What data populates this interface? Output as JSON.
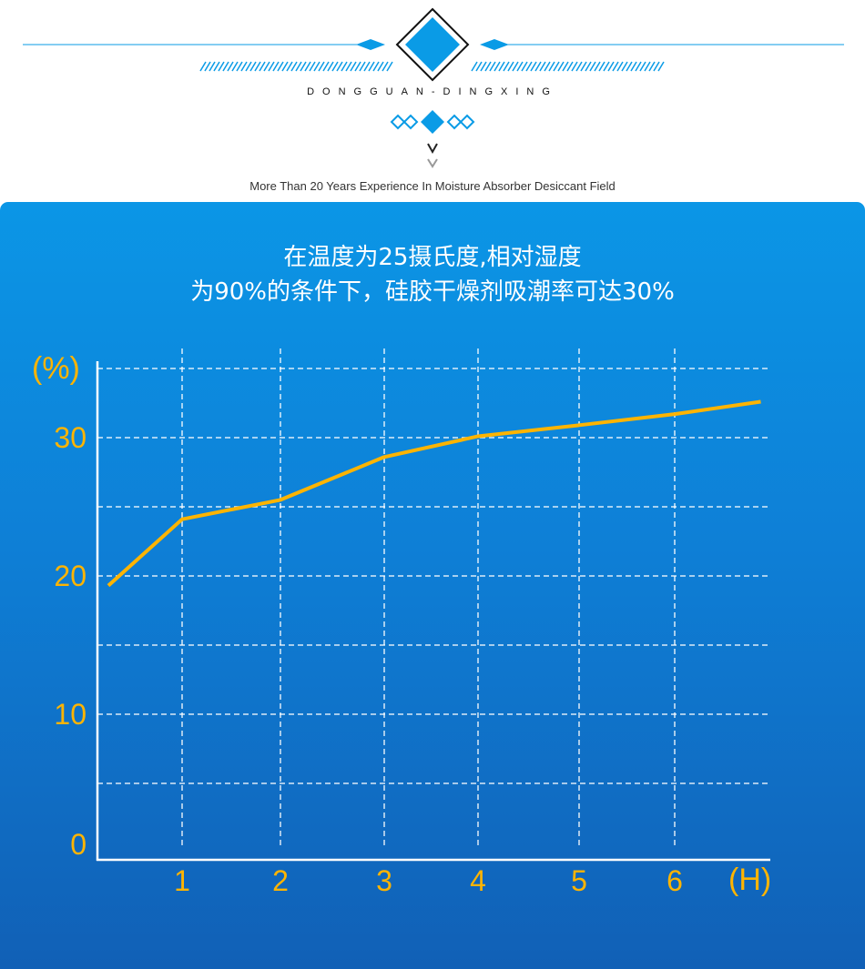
{
  "header": {
    "brand": "DONGGUAN-DINGXING",
    "tagline": "More Than 20 Years Experience In Moisture Absorber Desiccant Field",
    "accent": "#0a9be6"
  },
  "chart_data": {
    "type": "line",
    "title": [
      "在温度为25摄氏度,相对湿度",
      "为90%的条件下，硅胶干燥剂吸潮率可达30%"
    ],
    "xlabel": "(H)",
    "ylabel": "(%)",
    "xticks": [
      "1",
      "2",
      "3",
      "4",
      "5",
      "6"
    ],
    "yticks": [
      {
        "v": 0,
        "label": "0"
      },
      {
        "v": 10,
        "label": "10"
      },
      {
        "v": 20,
        "label": "20"
      },
      {
        "v": 30,
        "label": "30"
      }
    ],
    "ylim": [
      0,
      35
    ],
    "grid": true,
    "x": [
      0.25,
      1,
      2,
      3,
      4,
      5,
      6,
      6.9
    ],
    "values": [
      19.3,
      24.1,
      25.5,
      28.6,
      30.1,
      30.9,
      31.7,
      32.6
    ],
    "line_color": "#ffb400",
    "label_color": "#ffb400"
  }
}
